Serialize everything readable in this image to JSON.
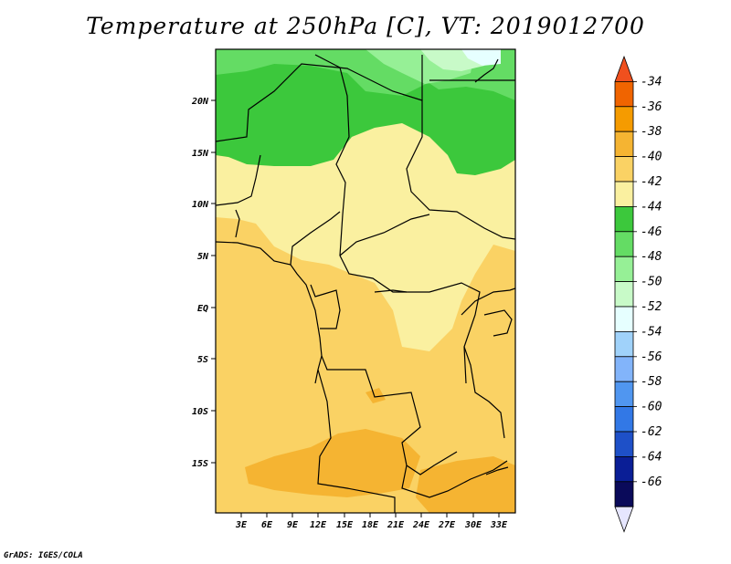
{
  "title": "Temperature at 250hPa [C], VT: 2019012700",
  "credit": "GrADS: IGES/COLA",
  "map": {
    "lat_labels": [
      "20N",
      "15N",
      "10N",
      "5N",
      "EQ",
      "5S",
      "10S",
      "15S"
    ],
    "lon_labels": [
      "3E",
      "6E",
      "9E",
      "12E",
      "15E",
      "18E",
      "21E",
      "24E",
      "27E",
      "30E",
      "33E"
    ]
  },
  "colorbar": {
    "labels": [
      "-34",
      "-36",
      "-38",
      "-40",
      "-42",
      "-44",
      "-46",
      "-48",
      "-50",
      "-52",
      "-54",
      "-56",
      "-58",
      "-60",
      "-62",
      "-64",
      "-66"
    ],
    "colors": [
      "#f0501e",
      "#f06400",
      "#f59b00",
      "#f5b432",
      "#fad264",
      "#faf0a0",
      "#3cc83c",
      "#64dc64",
      "#96f096",
      "#c8fac8",
      "#e6ffff",
      "#a0d2fa",
      "#82b4fa",
      "#5096f0",
      "#3278e6",
      "#1e50c8",
      "#0a1e96",
      "#0a0a5a",
      "#e6e6ff"
    ]
  },
  "field_colors": {
    "c40": "#fad264",
    "c42": "#faf0a0",
    "c38": "#f5b432",
    "c44": "#3cc83c",
    "c46": "#64dc64",
    "c48": "#96f096",
    "c50": "#c8fac8",
    "c52": "#e6ffff"
  }
}
